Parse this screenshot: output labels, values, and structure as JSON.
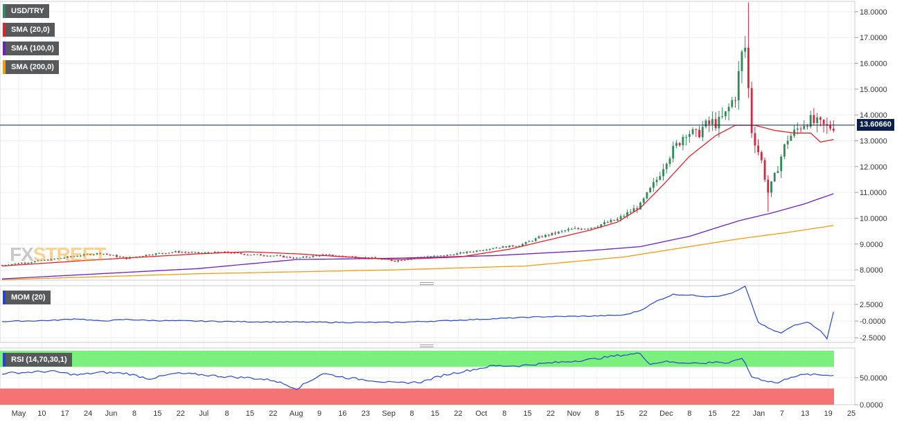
{
  "legend": {
    "symbol": "USD/TRY",
    "sma20": "SMA (20,0)",
    "sma100": "SMA (100,0)",
    "sma200": "SMA (200,0)",
    "mom": "MOM (20)",
    "rsi": "RSI (14,70,30,1)"
  },
  "logo": {
    "part1": "FX",
    "part2": "STREET"
  },
  "colors": {
    "up": "#2e8b57",
    "down": "#d7263d",
    "sma20": "#e8202a",
    "sma100": "#6a1fc8",
    "sma200": "#f39c12",
    "mom": "#2345d6",
    "rsi": "#2345d6",
    "rsi_over": "#7cf07c",
    "rsi_under": "#f47474",
    "last_price_line": "#0b1f4d"
  },
  "last_price": {
    "label": "13.60660",
    "value": 13.6066
  },
  "chart_data": [
    {
      "type": "candlestick",
      "name": "USD/TRY",
      "y_ticks": [
        "8.0000",
        "9.0000",
        "10.0000",
        "11.0000",
        "12.0000",
        "13.0000",
        "14.0000",
        "15.0000",
        "16.0000",
        "17.0000",
        "18.0000"
      ],
      "ylim": [
        7.6,
        18.4
      ],
      "x_ticks": [
        "May",
        "10",
        "17",
        "24",
        "Jun",
        "8",
        "15",
        "22",
        "Jul",
        "8",
        "15",
        "22",
        "Aug",
        "9",
        "16",
        "23",
        "Sep",
        "8",
        "15",
        "22",
        "Oct",
        "8",
        "15",
        "22",
        "Nov",
        "8",
        "15",
        "22",
        "Dec",
        "8",
        "15",
        "22",
        "Jan",
        "7",
        "13",
        "19",
        "25"
      ],
      "anchors": [
        [
          0,
          8.18
        ],
        [
          15,
          8.4
        ],
        [
          23,
          8.55
        ],
        [
          30,
          8.65
        ],
        [
          38,
          8.45
        ],
        [
          45,
          8.6
        ],
        [
          53,
          8.7
        ],
        [
          60,
          8.65
        ],
        [
          68,
          8.68
        ],
        [
          75,
          8.6
        ],
        [
          83,
          8.55
        ],
        [
          90,
          8.45
        ],
        [
          98,
          8.58
        ],
        [
          105,
          8.52
        ],
        [
          113,
          8.45
        ],
        [
          120,
          8.35
        ],
        [
          128,
          8.5
        ],
        [
          135,
          8.55
        ],
        [
          143,
          8.7
        ],
        [
          150,
          8.85
        ],
        [
          158,
          8.95
        ],
        [
          165,
          9.3
        ],
        [
          173,
          9.55
        ],
        [
          180,
          9.65
        ],
        [
          188,
          9.95
        ],
        [
          195,
          10.5
        ],
        [
          200,
          11.5
        ],
        [
          203,
          12.3
        ],
        [
          206,
          12.8
        ],
        [
          209,
          13.4
        ],
        [
          212,
          13.2
        ],
        [
          214,
          13.5
        ],
        [
          217,
          13.7
        ],
        [
          219,
          13.7
        ],
        [
          221,
          14.0
        ],
        [
          224,
          14.8
        ],
        [
          226,
          16.3
        ],
        [
          227,
          16.6
        ],
        [
          229,
          13.4
        ],
        [
          232,
          12.2
        ],
        [
          234,
          11.0
        ],
        [
          236,
          11.6
        ],
        [
          238,
          12.4
        ],
        [
          240,
          13.1
        ],
        [
          242,
          13.3
        ],
        [
          244,
          13.6
        ],
        [
          246,
          13.8
        ],
        [
          248,
          13.7
        ],
        [
          250,
          13.6
        ],
        [
          252,
          13.5
        ],
        [
          254,
          13.6
        ]
      ]
    },
    {
      "type": "line",
      "name": "SMA (20,0)",
      "anchors": [
        [
          0,
          8.15
        ],
        [
          30,
          8.4
        ],
        [
          60,
          8.62
        ],
        [
          75,
          8.7
        ],
        [
          90,
          8.62
        ],
        [
          105,
          8.5
        ],
        [
          120,
          8.4
        ],
        [
          140,
          8.5
        ],
        [
          155,
          8.8
        ],
        [
          170,
          9.25
        ],
        [
          180,
          9.55
        ],
        [
          188,
          9.85
        ],
        [
          195,
          10.4
        ],
        [
          202,
          11.3
        ],
        [
          210,
          12.4
        ],
        [
          218,
          13.2
        ],
        [
          224,
          13.6
        ],
        [
          230,
          13.6
        ],
        [
          236,
          13.4
        ],
        [
          242,
          13.3
        ],
        [
          247,
          13.3
        ],
        [
          250,
          12.95
        ],
        [
          254,
          13.05
        ]
      ]
    },
    {
      "type": "line",
      "name": "SMA (100,0)",
      "anchors": [
        [
          0,
          7.65
        ],
        [
          60,
          8.05
        ],
        [
          90,
          8.4
        ],
        [
          120,
          8.45
        ],
        [
          150,
          8.55
        ],
        [
          180,
          8.75
        ],
        [
          195,
          8.9
        ],
        [
          210,
          9.3
        ],
        [
          225,
          9.9
        ],
        [
          235,
          10.2
        ],
        [
          245,
          10.55
        ],
        [
          254,
          10.95
        ]
      ]
    },
    {
      "type": "line",
      "name": "SMA (200,0)",
      "anchors": [
        [
          0,
          7.62
        ],
        [
          60,
          7.85
        ],
        [
          120,
          8.0
        ],
        [
          160,
          8.15
        ],
        [
          190,
          8.5
        ],
        [
          210,
          8.9
        ],
        [
          225,
          9.2
        ],
        [
          240,
          9.45
        ],
        [
          254,
          9.72
        ]
      ]
    },
    {
      "type": "line",
      "name": "MOM (20)",
      "y_ticks": [
        "2.5000",
        "-0.0000",
        "-2.5000"
      ],
      "ylim": [
        -3.2,
        5.3
      ],
      "anchors": [
        [
          0,
          -0.05
        ],
        [
          15,
          0.1
        ],
        [
          23,
          0.35
        ],
        [
          30,
          0.0
        ],
        [
          38,
          0.25
        ],
        [
          45,
          0.1
        ],
        [
          60,
          0.0
        ],
        [
          75,
          -0.1
        ],
        [
          90,
          -0.15
        ],
        [
          105,
          -0.2
        ],
        [
          120,
          -0.2
        ],
        [
          135,
          0.05
        ],
        [
          150,
          0.35
        ],
        [
          165,
          0.65
        ],
        [
          180,
          0.75
        ],
        [
          190,
          0.9
        ],
        [
          195,
          1.6
        ],
        [
          200,
          3.0
        ],
        [
          205,
          4.0
        ],
        [
          210,
          3.9
        ],
        [
          215,
          3.7
        ],
        [
          220,
          3.8
        ],
        [
          224,
          4.4
        ],
        [
          227,
          5.2
        ],
        [
          231,
          -0.2
        ],
        [
          235,
          -1.3
        ],
        [
          238,
          -1.8
        ],
        [
          242,
          -0.6
        ],
        [
          246,
          -0.1
        ],
        [
          250,
          -1.4
        ],
        [
          252,
          -2.7
        ],
        [
          254,
          1.4
        ]
      ]
    },
    {
      "type": "line",
      "name": "RSI (14,70,30,1)",
      "y_ticks": [
        "50.0000",
        "0.0000"
      ],
      "ylim": [
        0,
        105
      ],
      "overbought": 70,
      "oversold": 30,
      "anchors": [
        [
          0,
          58
        ],
        [
          15,
          62
        ],
        [
          23,
          55
        ],
        [
          30,
          60
        ],
        [
          38,
          58
        ],
        [
          45,
          48
        ],
        [
          53,
          58
        ],
        [
          60,
          56
        ],
        [
          68,
          52
        ],
        [
          75,
          50
        ],
        [
          83,
          45
        ],
        [
          90,
          30
        ],
        [
          98,
          58
        ],
        [
          105,
          50
        ],
        [
          113,
          45
        ],
        [
          120,
          40
        ],
        [
          128,
          42
        ],
        [
          135,
          55
        ],
        [
          143,
          64
        ],
        [
          150,
          72
        ],
        [
          158,
          72
        ],
        [
          165,
          76
        ],
        [
          173,
          80
        ],
        [
          180,
          84
        ],
        [
          188,
          91
        ],
        [
          195,
          95
        ],
        [
          198,
          75
        ],
        [
          202,
          80
        ],
        [
          206,
          78
        ],
        [
          210,
          78
        ],
        [
          214,
          76
        ],
        [
          218,
          80
        ],
        [
          222,
          76
        ],
        [
          226,
          87
        ],
        [
          229,
          52
        ],
        [
          233,
          45
        ],
        [
          237,
          40
        ],
        [
          241,
          52
        ],
        [
          246,
          56
        ],
        [
          250,
          55
        ],
        [
          254,
          55
        ]
      ]
    }
  ]
}
